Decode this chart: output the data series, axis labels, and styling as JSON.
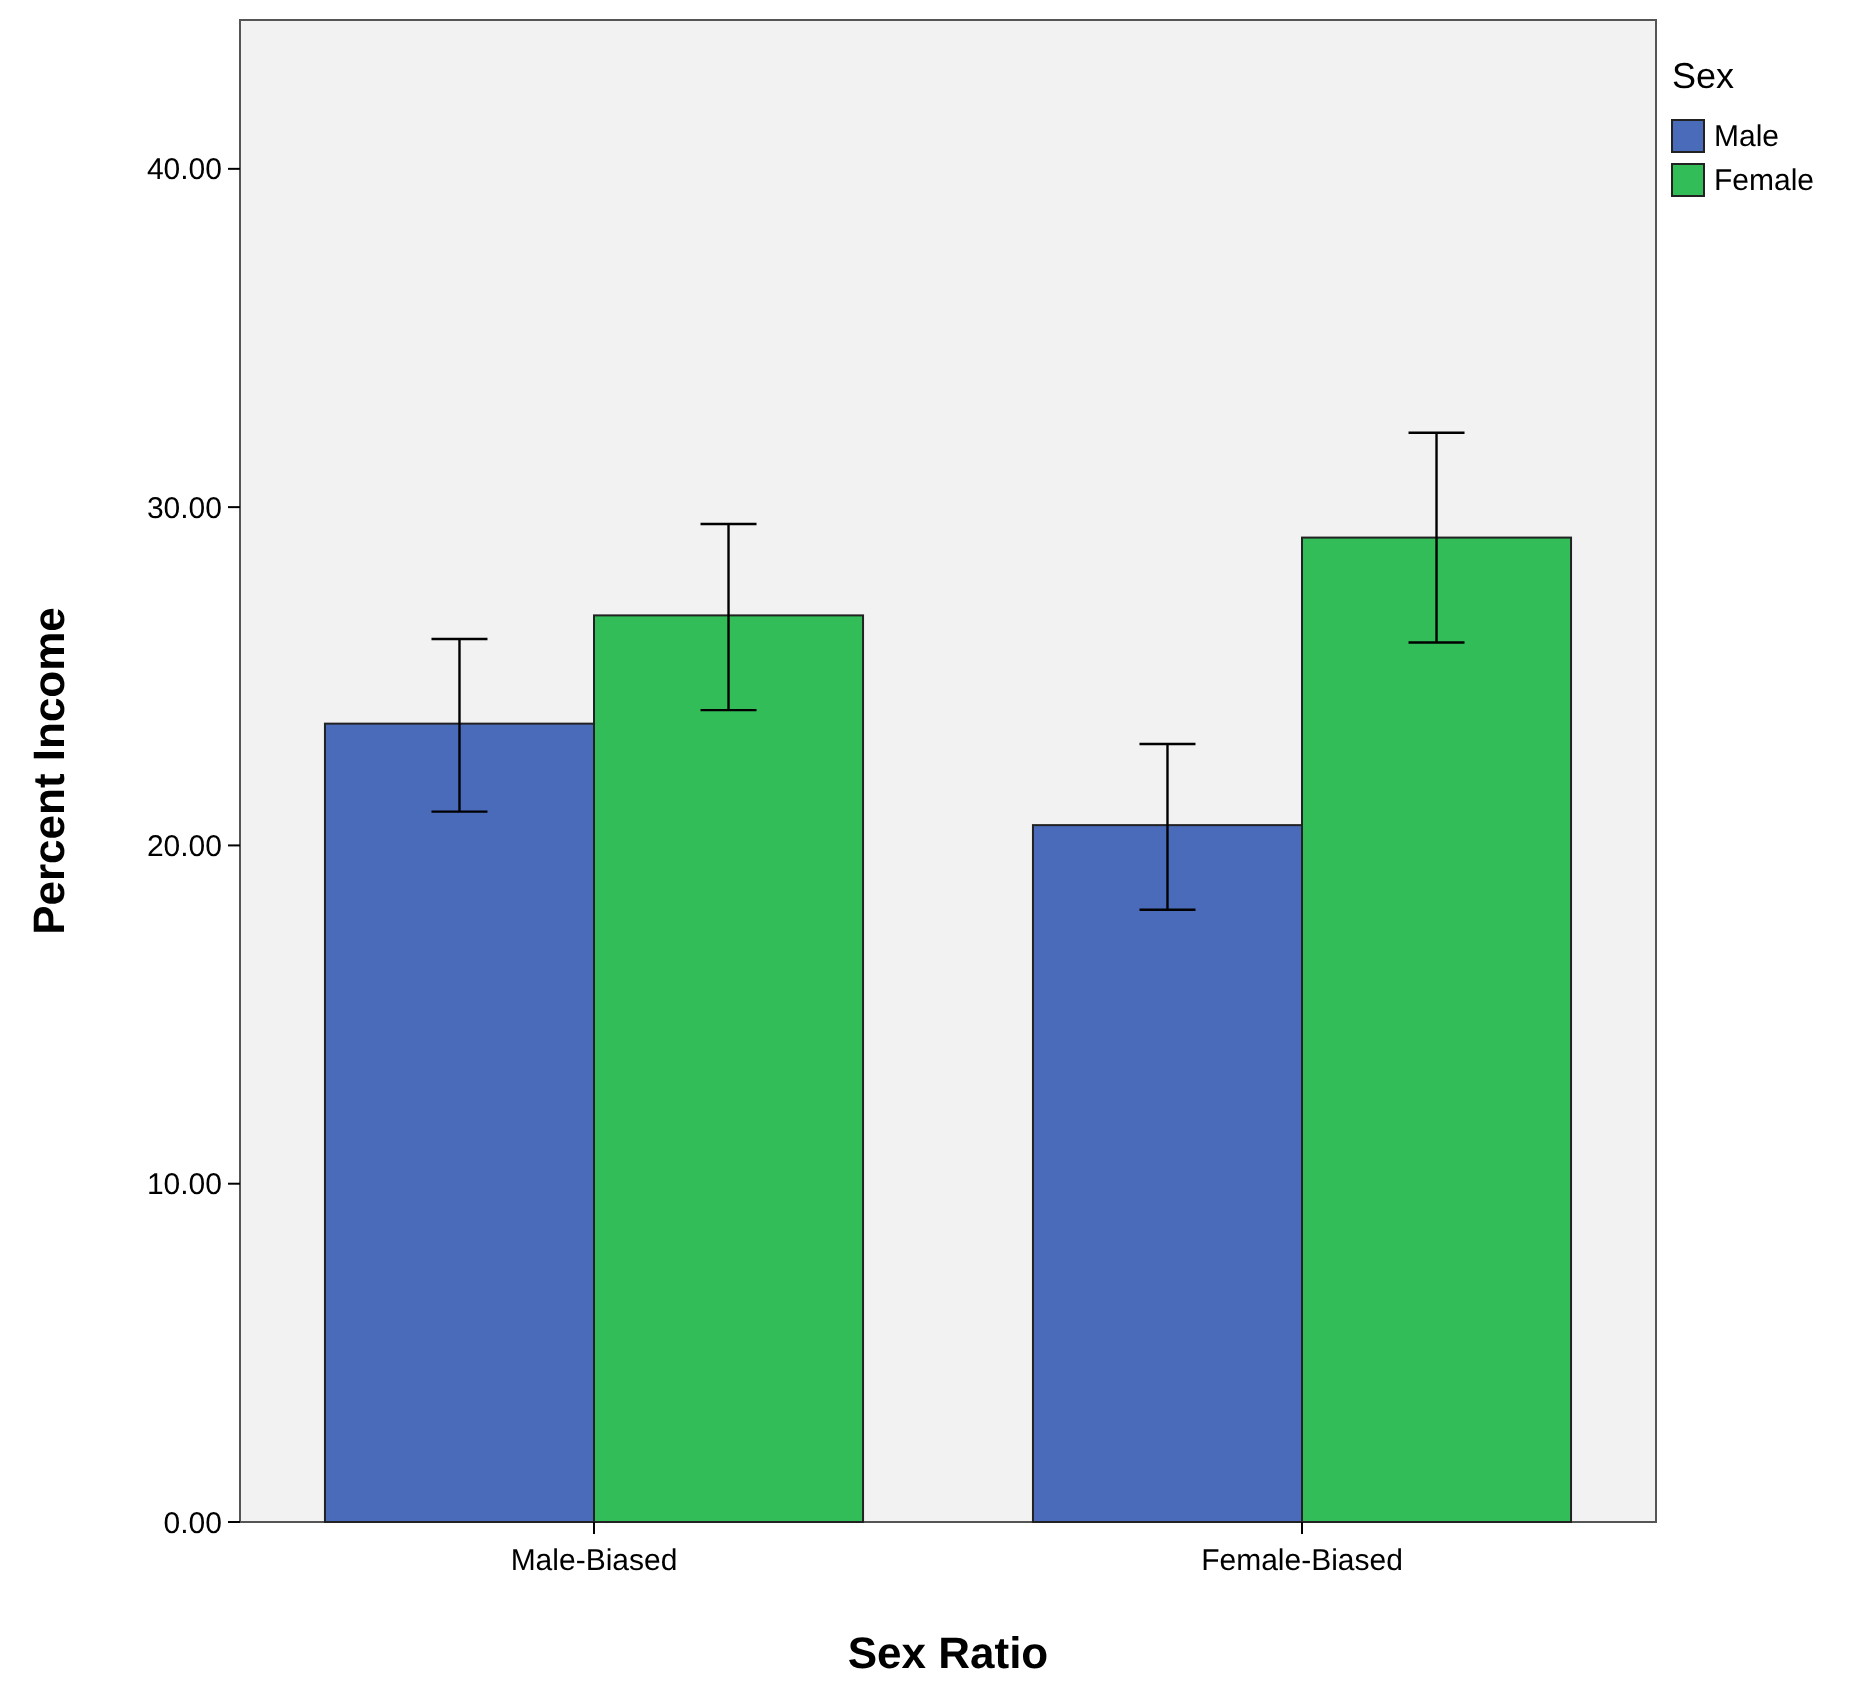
{
  "chart_data": {
    "type": "bar",
    "xlabel": "Sex Ratio",
    "ylabel": "Percent Income",
    "legend_title": "Sex",
    "categories": [
      "Male-Biased",
      "Female-Biased"
    ],
    "series": [
      {
        "name": "Male",
        "color": "#4a6bba",
        "values": [
          23.6,
          20.6
        ],
        "errors": [
          [
            21.0,
            26.1
          ],
          [
            18.1,
            23.0
          ]
        ]
      },
      {
        "name": "Female",
        "color": "#33bd58",
        "values": [
          26.8,
          29.1
        ],
        "errors": [
          [
            24.0,
            29.5
          ],
          [
            26.0,
            32.2
          ]
        ]
      }
    ],
    "ylim": [
      0,
      44.4
    ],
    "yticks": [
      {
        "value": 0,
        "label": "0.00"
      },
      {
        "value": 10,
        "label": "10.00"
      },
      {
        "value": 20,
        "label": "20.00"
      },
      {
        "value": 30,
        "label": "30.00"
      },
      {
        "value": 40,
        "label": "40.00"
      }
    ],
    "grid": false,
    "legend": "top right"
  }
}
